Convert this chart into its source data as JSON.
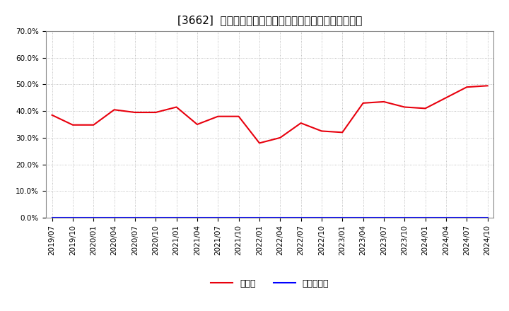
{
  "title": "[3662]  現預金、有利子負債の総資産に対する比率の推移",
  "x_labels": [
    "2019/07",
    "2019/10",
    "2020/01",
    "2020/04",
    "2020/07",
    "2020/10",
    "2021/01",
    "2021/04",
    "2021/07",
    "2021/10",
    "2022/01",
    "2022/04",
    "2022/07",
    "2022/10",
    "2023/01",
    "2023/04",
    "2023/07",
    "2023/10",
    "2024/01",
    "2024/04",
    "2024/07",
    "2024/10"
  ],
  "cash_values": [
    38.5,
    34.8,
    34.8,
    40.5,
    39.5,
    39.5,
    41.5,
    35.0,
    38.0,
    38.0,
    28.0,
    30.0,
    35.5,
    32.5,
    32.0,
    43.0,
    43.5,
    41.5,
    41.0,
    45.0,
    49.0,
    49.5
  ],
  "debt_values": [
    0.0,
    0.0,
    0.0,
    0.0,
    0.0,
    0.0,
    0.0,
    0.0,
    0.0,
    0.0,
    0.0,
    0.0,
    0.0,
    0.0,
    0.0,
    0.0,
    0.0,
    0.0,
    0.0,
    0.0,
    0.0,
    0.0
  ],
  "cash_color": "#e8000d",
  "debt_color": "#0000ff",
  "ylim": [
    0,
    70
  ],
  "yticks": [
    0,
    10,
    20,
    30,
    40,
    50,
    60,
    70
  ],
  "plot_bg_color": "#ffffff",
  "fig_bg_color": "#ffffff",
  "grid_color": "#999999",
  "legend_cash": "現預金",
  "legend_debt": "有利子負債",
  "title_fontsize": 11,
  "axis_fontsize": 7.5,
  "legend_fontsize": 9
}
